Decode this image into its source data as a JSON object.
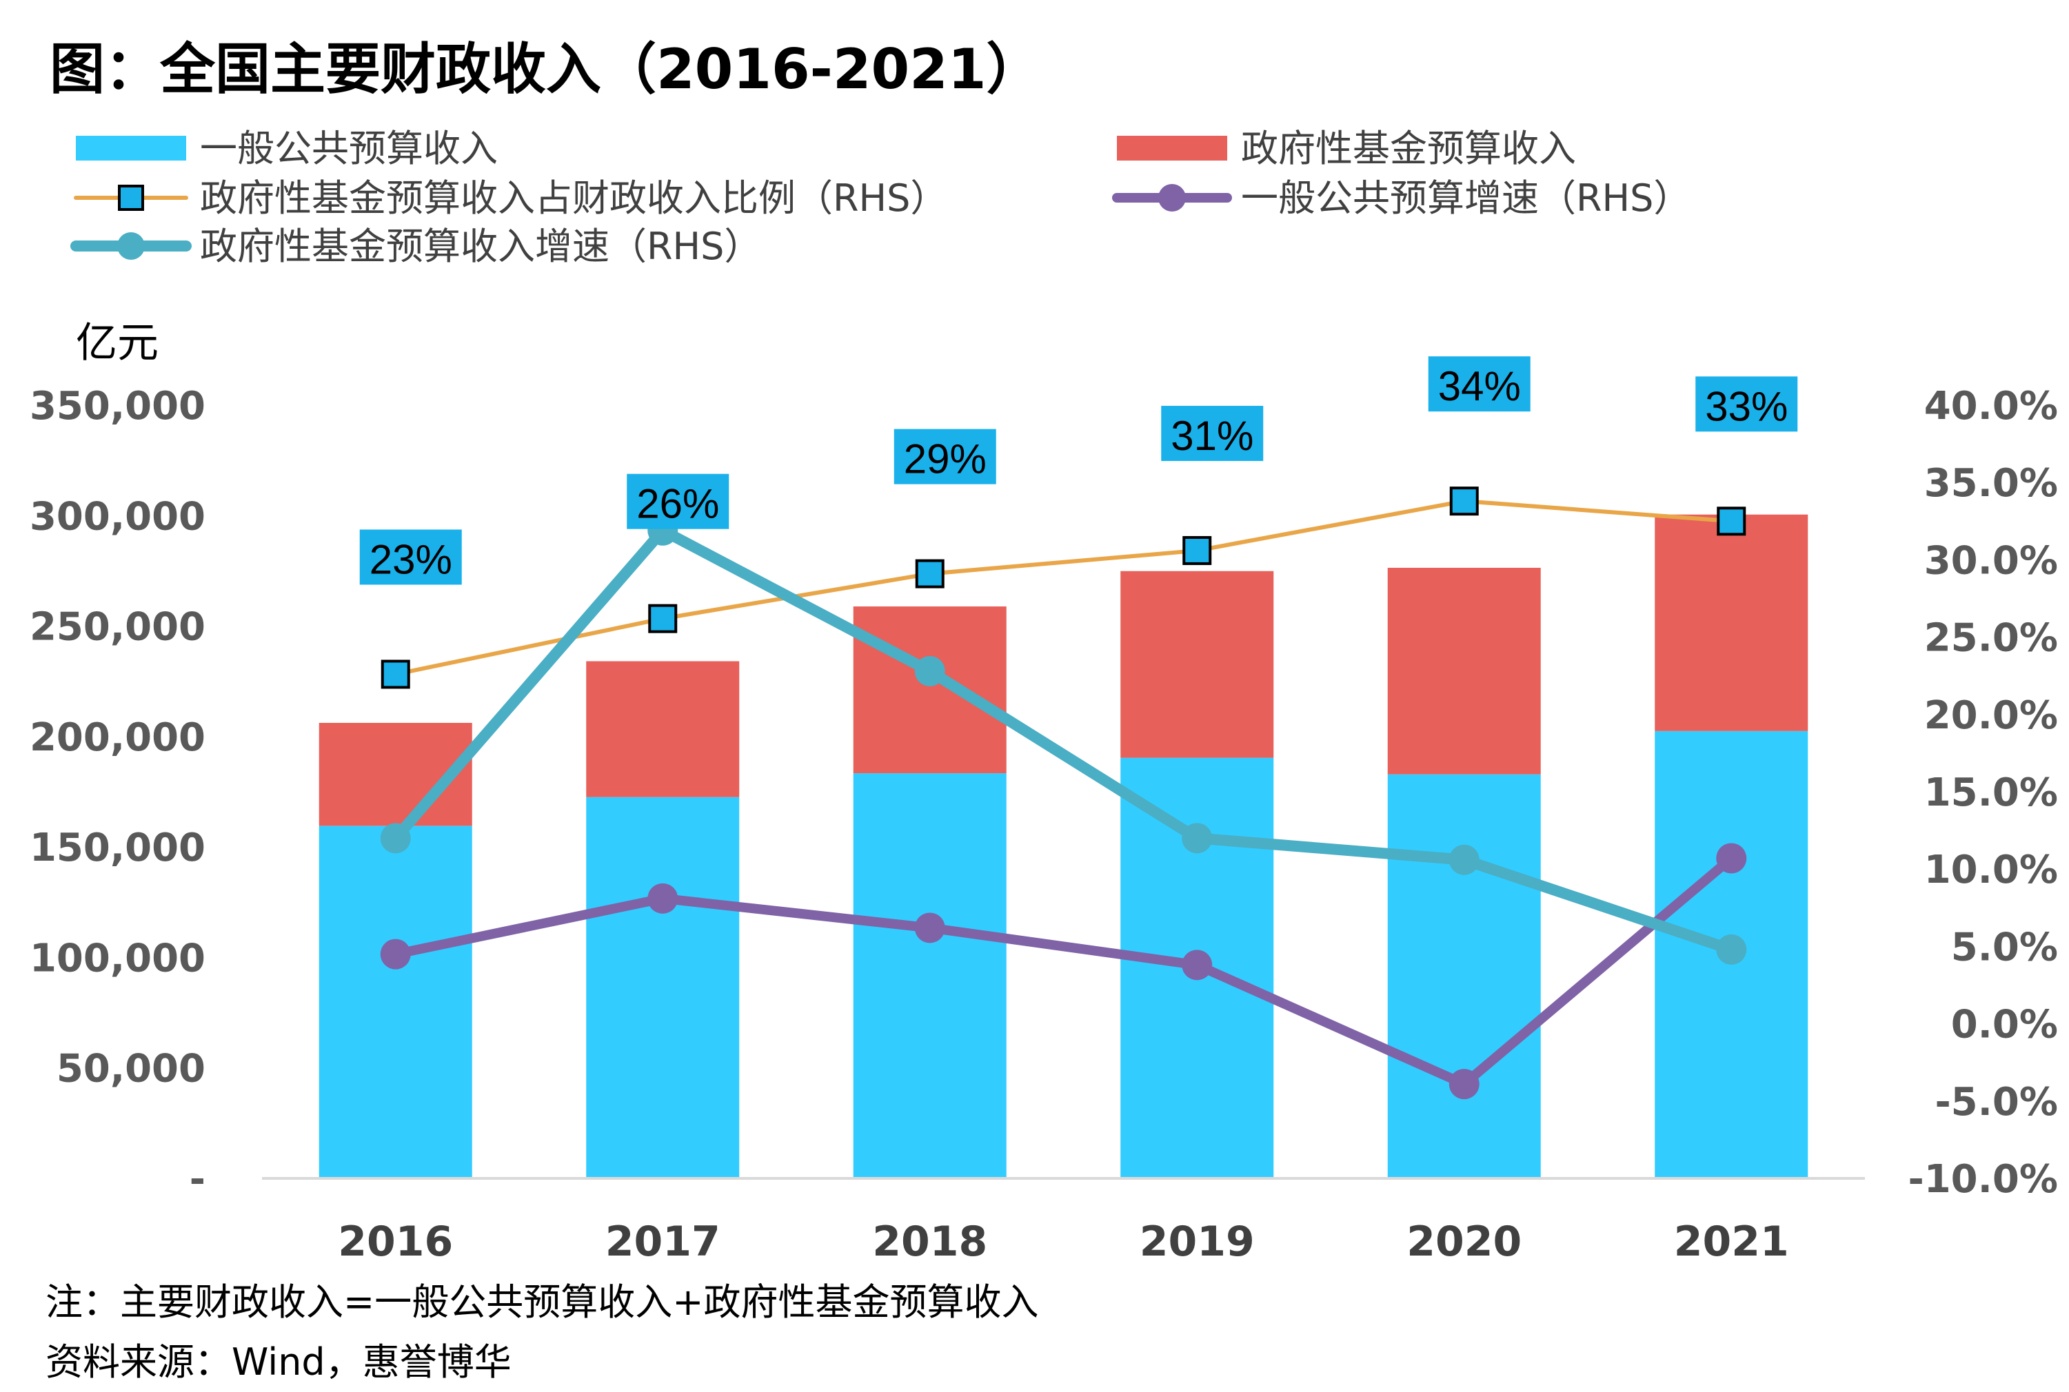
{
  "chart_data": {
    "type": "bar",
    "title": "图：全国主要财政收入（2016-2021）",
    "categories": [
      "2016",
      "2017",
      "2018",
      "2019",
      "2020",
      "2021"
    ],
    "y_left": {
      "unit": "亿元",
      "ylim": [
        0,
        350000
      ],
      "ticks": [
        0,
        50000,
        100000,
        150000,
        200000,
        250000,
        300000,
        350000
      ],
      "tick_labels": [
        "-",
        "50,000",
        "100,000",
        "150,000",
        "200,000",
        "250,000",
        "300,000",
        "350,000"
      ]
    },
    "y_right": {
      "ylim": [
        -10,
        40
      ],
      "ticks": [
        -10,
        -5,
        0,
        5,
        10,
        15,
        20,
        25,
        30,
        35,
        40
      ],
      "tick_labels": [
        "-10.0%",
        "-5.0%",
        "0.0%",
        "5.0%",
        "10.0%",
        "15.0%",
        "20.0%",
        "25.0%",
        "30.0%",
        "35.0%",
        "40.0%"
      ]
    },
    "series": [
      {
        "name": "一般公共预算收入",
        "kind": "bar",
        "axis": "left",
        "color": "#33ccff",
        "values": [
          159600,
          172600,
          183400,
          190400,
          182900,
          202500
        ]
      },
      {
        "name": "政府性基金预算收入",
        "kind": "bar",
        "axis": "left",
        "color": "#e8605a",
        "values": [
          46600,
          61500,
          75500,
          84500,
          93500,
          98000
        ]
      },
      {
        "name": "政府性基金预算收入占财政收入比例（RHS）",
        "kind": "line",
        "axis": "right",
        "color": "#e9a649",
        "marker": "square",
        "marker_color": "#1ab0ea",
        "values": [
          22.6,
          26.2,
          29.1,
          30.6,
          33.8,
          32.5
        ],
        "data_labels": [
          "23%",
          "26%",
          "29%",
          "31%",
          "34%",
          "33%"
        ]
      },
      {
        "name": "一般公共预算增速（RHS）",
        "kind": "line",
        "axis": "right",
        "color": "#7f63a6",
        "marker": "circle",
        "values": [
          4.5,
          8.1,
          6.2,
          3.8,
          -3.9,
          10.7
        ]
      },
      {
        "name": "政府性基金预算收入增速（RHS）",
        "kind": "line",
        "axis": "right",
        "color": "#4aaec4",
        "marker": "circle",
        "values": [
          12.0,
          31.9,
          22.8,
          12.0,
          10.6,
          4.8
        ]
      }
    ],
    "legend_position": "top",
    "grid": false
  },
  "notes": {
    "note": "注：主要财政收入=一般公共预算收入+政府性基金预算收入",
    "source": "资料来源：Wind，惠誉博华"
  }
}
